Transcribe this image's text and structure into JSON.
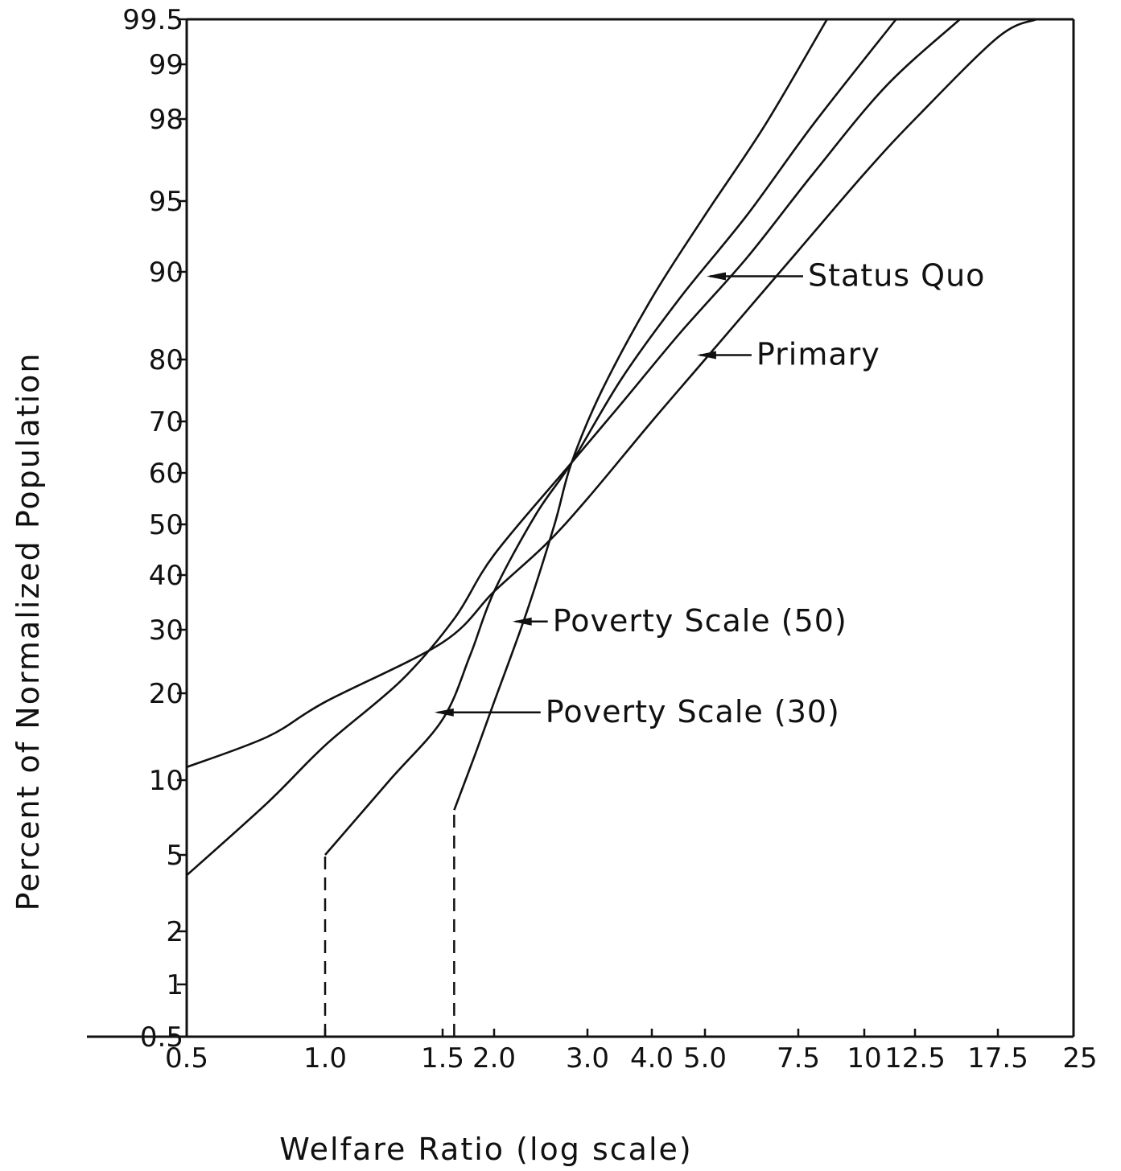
{
  "chart_data": {
    "type": "line",
    "title": "",
    "xlabel": "Welfare Ratio (log scale)",
    "ylabel": "Percent of Normalized Population",
    "x_scale": "log",
    "y_scale": "probability",
    "xlim": [
      0.5,
      25
    ],
    "ylim": [
      0.5,
      99.5
    ],
    "grid": false,
    "x_ticks": [
      {
        "value": 0.5,
        "label": "0.5"
      },
      {
        "value": 1.0,
        "label": "1.0"
      },
      {
        "value": 1.5,
        "label": "1.5"
      },
      {
        "value": 2.0,
        "label": "2.0"
      },
      {
        "value": 3.0,
        "label": "3.0"
      },
      {
        "value": 4.0,
        "label": "4.0"
      },
      {
        "value": 5.0,
        "label": "5.0"
      },
      {
        "value": 7.5,
        "label": "7.5"
      },
      {
        "value": 10,
        "label": "10"
      },
      {
        "value": 12.5,
        "label": "12.5"
      },
      {
        "value": 17.5,
        "label": "17.5"
      },
      {
        "value": 25,
        "label": "25"
      }
    ],
    "y_ticks": [
      {
        "value": 0.5,
        "label": "0.5"
      },
      {
        "value": 1,
        "label": "1"
      },
      {
        "value": 2,
        "label": "2"
      },
      {
        "value": 5,
        "label": "5"
      },
      {
        "value": 10,
        "label": "10"
      },
      {
        "value": 20,
        "label": "20"
      },
      {
        "value": 30,
        "label": "30"
      },
      {
        "value": 40,
        "label": "40"
      },
      {
        "value": 50,
        "label": "50"
      },
      {
        "value": 60,
        "label": "60"
      },
      {
        "value": 70,
        "label": "70"
      },
      {
        "value": 80,
        "label": "80"
      },
      {
        "value": 90,
        "label": "90"
      },
      {
        "value": 95,
        "label": "95"
      },
      {
        "value": 98,
        "label": "98"
      },
      {
        "value": 99,
        "label": "99"
      },
      {
        "value": 99.5,
        "label": "99.5"
      }
    ],
    "series": [
      {
        "key": "primary",
        "name": "Primary",
        "points": [
          [
            0.5,
            11.5
          ],
          [
            0.75,
            15
          ],
          [
            1.0,
            19
          ],
          [
            1.5,
            28
          ],
          [
            2.0,
            37
          ],
          [
            2.5,
            46
          ],
          [
            3.0,
            55
          ],
          [
            4.0,
            70
          ],
          [
            5.0,
            80
          ],
          [
            7.5,
            91.5
          ],
          [
            10,
            96
          ],
          [
            12.5,
            98
          ],
          [
            17.5,
            99.3
          ],
          [
            21,
            99.5
          ]
        ]
      },
      {
        "key": "status_quo",
        "name": "Status Quo",
        "points": [
          [
            0.5,
            4.2
          ],
          [
            0.75,
            8.5
          ],
          [
            1.0,
            14
          ],
          [
            1.3,
            22
          ],
          [
            1.6,
            32
          ],
          [
            2.0,
            44
          ],
          [
            2.8,
            62
          ],
          [
            3.5,
            73
          ],
          [
            4.5,
            83
          ],
          [
            6.0,
            91
          ],
          [
            8.0,
            96
          ],
          [
            11,
            98.6
          ],
          [
            15,
            99.5
          ]
        ]
      },
      {
        "key": "poverty_30",
        "name": "Poverty Scale (30)",
        "points": [
          [
            1.0,
            5
          ],
          [
            1.25,
            10
          ],
          [
            1.5,
            17
          ],
          [
            1.75,
            26
          ],
          [
            2.0,
            37
          ],
          [
            2.4,
            52
          ],
          [
            2.8,
            62
          ],
          [
            3.5,
            77
          ],
          [
            4.5,
            87
          ],
          [
            6.0,
            94
          ],
          [
            8.0,
            97.8
          ],
          [
            11.5,
            99.5
          ]
        ]
      },
      {
        "key": "poverty_50",
        "name": "Poverty Scale (50)",
        "points": [
          [
            1.6,
            8
          ],
          [
            1.8,
            13
          ],
          [
            2.0,
            19
          ],
          [
            2.3,
            33
          ],
          [
            2.6,
            50
          ],
          [
            2.8,
            62
          ],
          [
            3.2,
            75
          ],
          [
            4.0,
            87
          ],
          [
            5.0,
            94
          ],
          [
            6.5,
            97.8
          ],
          [
            8.5,
            99.5
          ]
        ]
      }
    ],
    "dashed_segments": [
      {
        "x": 1.0,
        "y_from": 0.5,
        "y_to": 5
      },
      {
        "x": 1.6,
        "y_from": 0.5,
        "y_to": 8
      }
    ],
    "annotations": [
      {
        "series": "status_quo",
        "text": "Status Quo",
        "x": 5.0,
        "y": 89.5
      },
      {
        "series": "primary",
        "text": "Primary",
        "x": 4.8,
        "y": 80.5
      },
      {
        "series": "poverty_50",
        "text": "Poverty Scale (50)",
        "x": 2.15,
        "y": 31.5
      },
      {
        "series": "poverty_30",
        "text": "Poverty Scale (30)",
        "x": 1.45,
        "y": 17.8
      }
    ]
  }
}
